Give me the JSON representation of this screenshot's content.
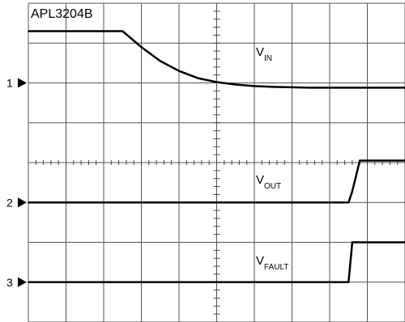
{
  "chart_data": {
    "type": "line",
    "title": "APL3204B",
    "grid": true,
    "x_divisions": 10,
    "y_divisions": 8,
    "x": [
      0,
      0.5,
      1,
      1.5,
      2,
      2.5,
      3,
      3.5,
      4,
      4.5,
      5,
      5.5,
      6,
      6.5,
      7,
      7.5,
      8,
      8.5,
      8.6,
      8.8,
      9,
      9.5,
      10
    ],
    "xlim": [
      0,
      10
    ],
    "ylim": [
      -4,
      4
    ],
    "series": [
      {
        "name": "VIN",
        "label_main": "V",
        "label_sub": "IN",
        "channel_marker": "1",
        "values": [
          3.3,
          3.3,
          3.3,
          3.3,
          3.3,
          3.3,
          2.9,
          2.55,
          2.3,
          2.12,
          2.02,
          1.96,
          1.92,
          1.9,
          1.89,
          1.88,
          1.88,
          1.88,
          1.88,
          1.88,
          1.88,
          1.88,
          1.88
        ]
      },
      {
        "name": "VOUT",
        "label_main": "V",
        "label_sub": "OUT",
        "channel_marker": "2",
        "values": [
          -1,
          -1,
          -1,
          -1,
          -1,
          -1,
          -1,
          -1,
          -1,
          -1,
          -1,
          -1,
          -1,
          -1,
          -1,
          -1,
          -1,
          -1,
          -0.72,
          0.05,
          0.05,
          0.05,
          0.05
        ]
      },
      {
        "name": "VFAULT",
        "label_main": "V",
        "label_sub": "FAULT",
        "channel_marker": "3",
        "values": [
          -3,
          -3,
          -3,
          -3,
          -3,
          -3,
          -3,
          -3,
          -3,
          -3,
          -3,
          -3,
          -3,
          -3,
          -3,
          -3,
          -3,
          -3,
          -2,
          -2,
          -2,
          -2,
          -2
        ]
      }
    ]
  }
}
